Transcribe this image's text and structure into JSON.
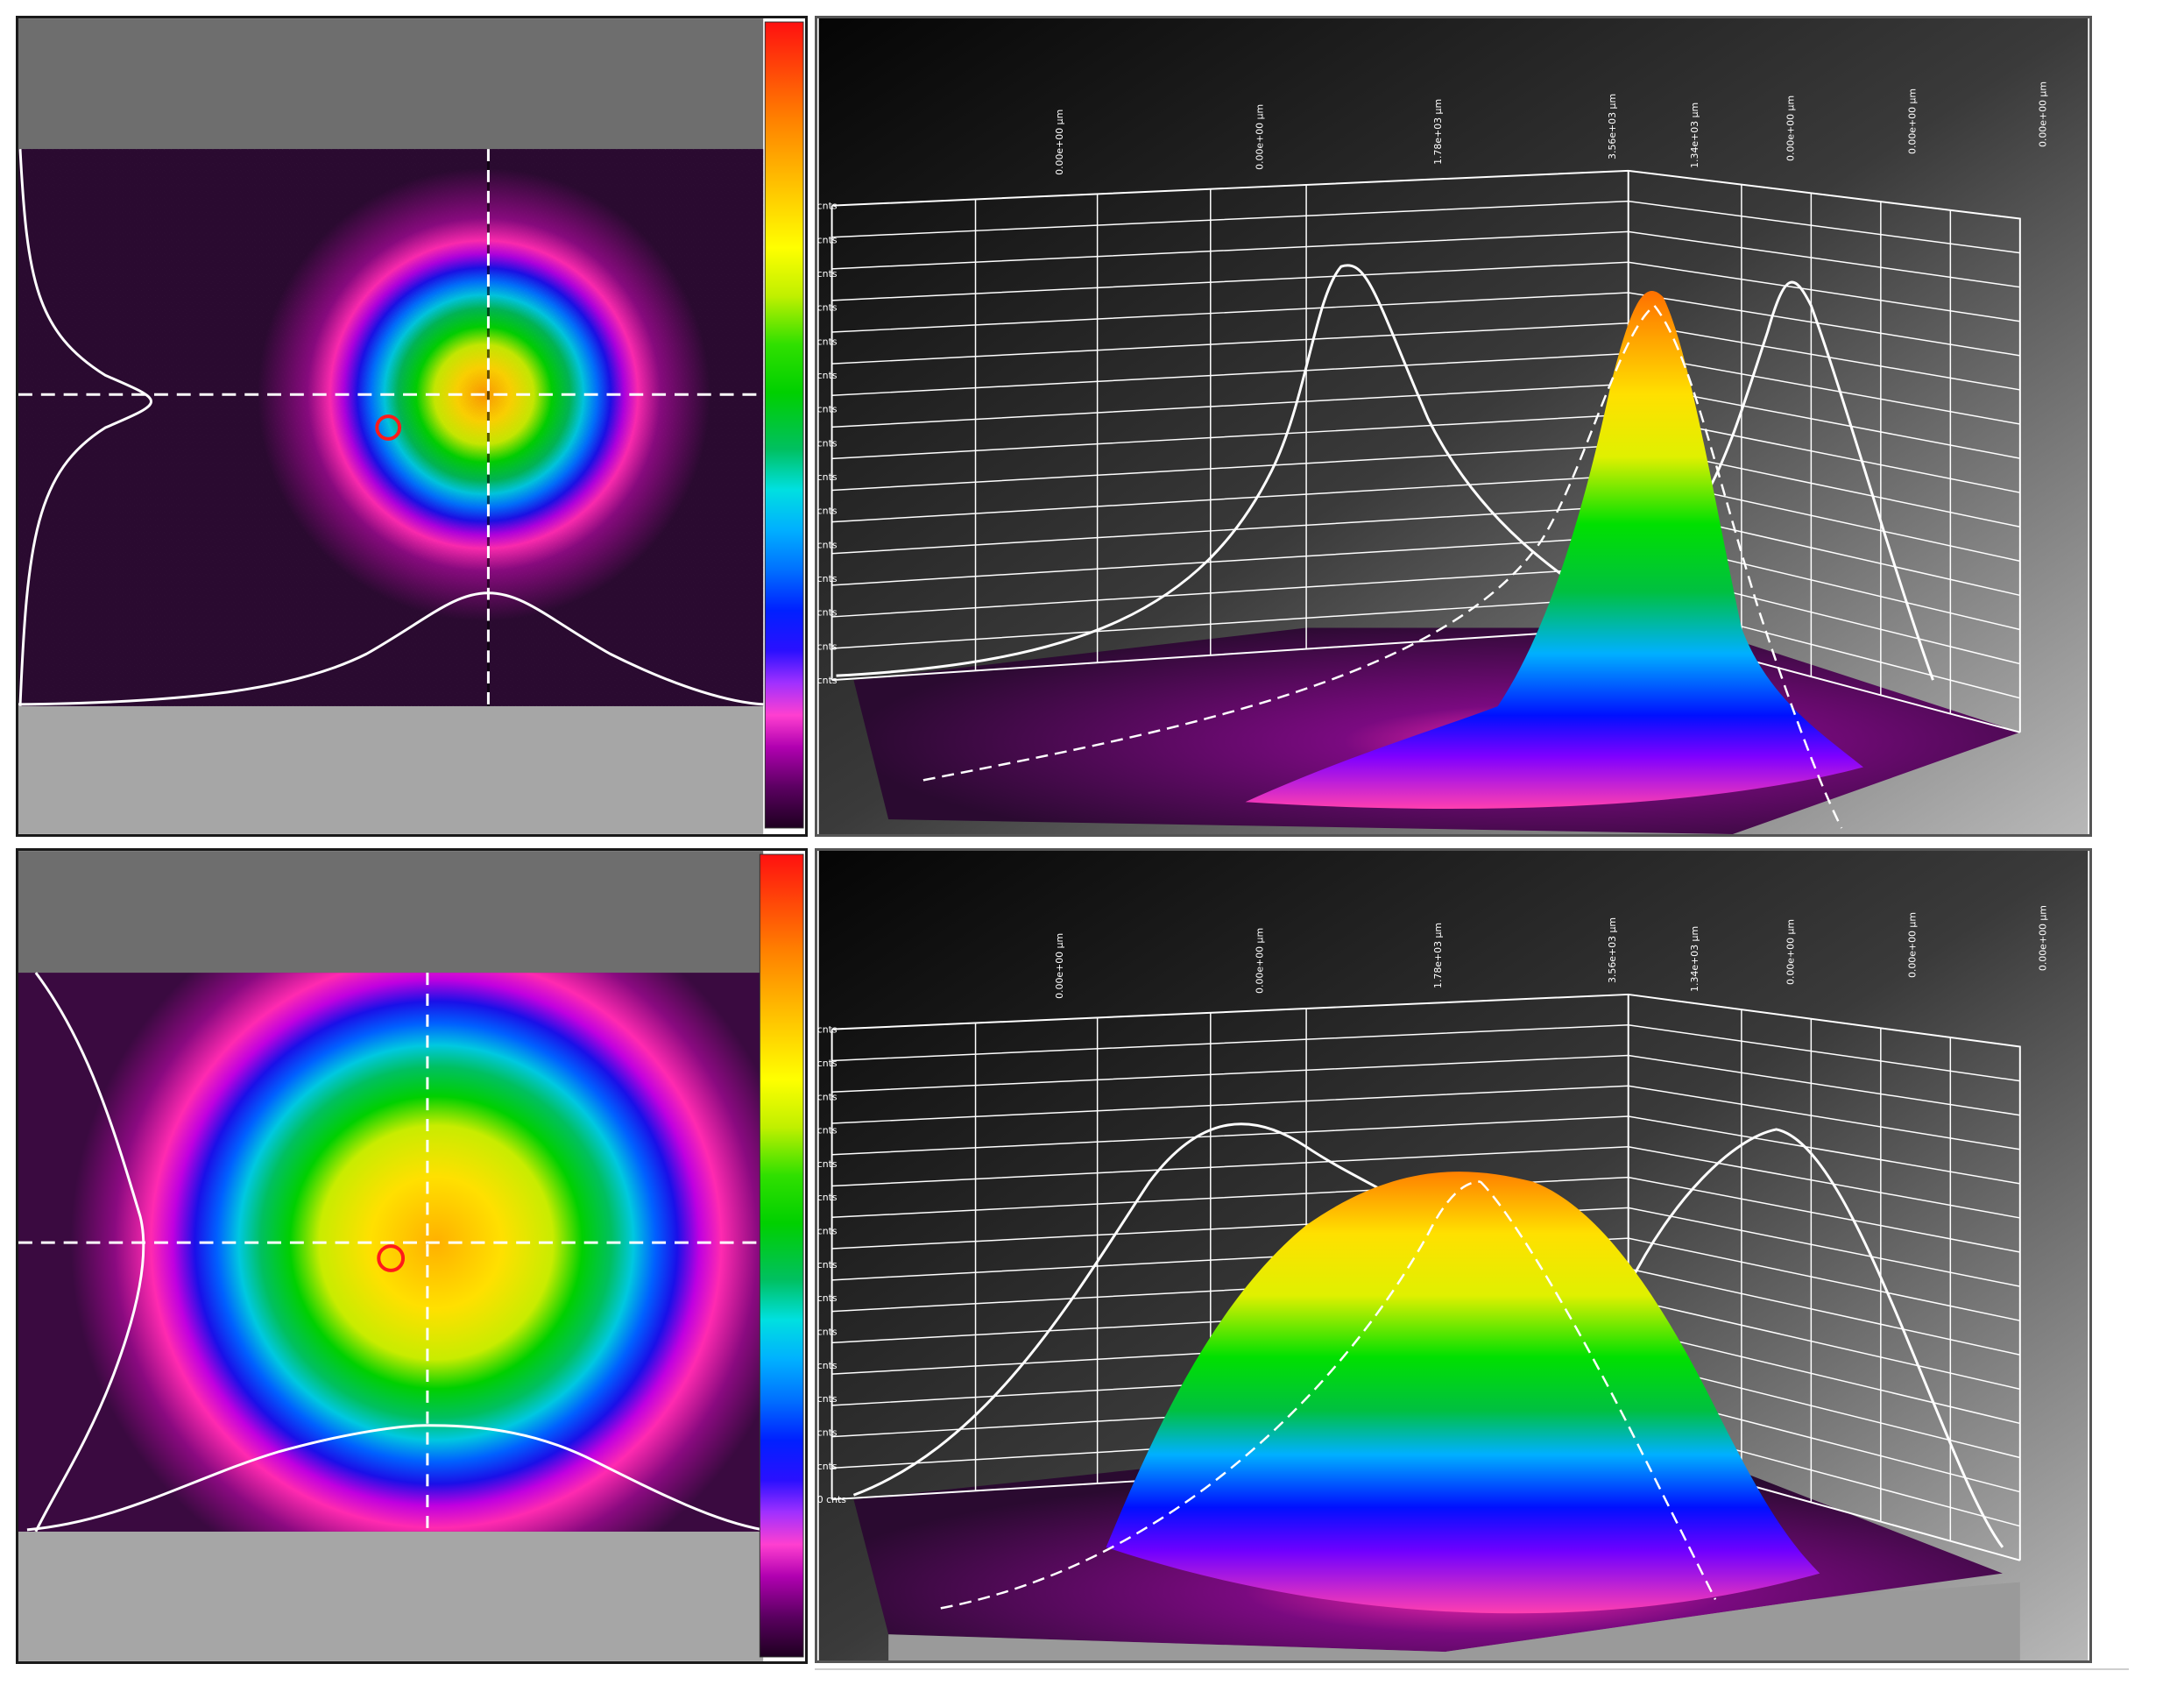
{
  "panels": [
    {
      "name": "top",
      "top_labels": [
        "0.00e+00 µm",
        "0.00e+00 µm",
        "1.78e+03 µm",
        "3.56e+03 µm",
        "1.34e+03 µm",
        "0.00e+00 µm",
        "0.00e+00 µm",
        "0.00e+00 µm"
      ],
      "z_labels": [
        "cnts",
        "cnts",
        "cnts",
        "cnts",
        "cnts",
        "cnts",
        "cnts",
        "cnts",
        "cnts",
        "cnts",
        "cnts",
        "cnts",
        "cnts",
        "cnts",
        "cnts"
      ]
    },
    {
      "name": "bottom",
      "top_labels": [
        "0.00e+00 µm",
        "0.00e+00 µm",
        "1.78e+03 µm",
        "3.56e+03 µm",
        "1.34e+03 µm",
        "0.00e+00 µm",
        "0.00e+00 µm",
        "0.00e+00 µm"
      ],
      "z_labels": [
        "cnts",
        "cnts",
        "cnts",
        "cnts",
        "cnts",
        "cnts",
        "cnts",
        "cnts",
        "cnts",
        "cnts",
        "cnts",
        "cnts",
        "cnts",
        "cnts",
        "0 cnts"
      ]
    }
  ],
  "colors": {
    "colormap": [
      "#2a0030",
      "#5a0060",
      "#a000a0",
      "#ff2aa0",
      "#ff3fd0",
      "#7000ff",
      "#0010ff",
      "#0060ff",
      "#00b0ff",
      "#00e0d0",
      "#00c040",
      "#00e000",
      "#a0e000",
      "#ffff00",
      "#ffb000",
      "#ff7000",
      "#ff2000"
    ],
    "noise_background": "#2a0a30",
    "gray_band": "#6e6e6e",
    "marker_ring": "#ff1a1a"
  }
}
